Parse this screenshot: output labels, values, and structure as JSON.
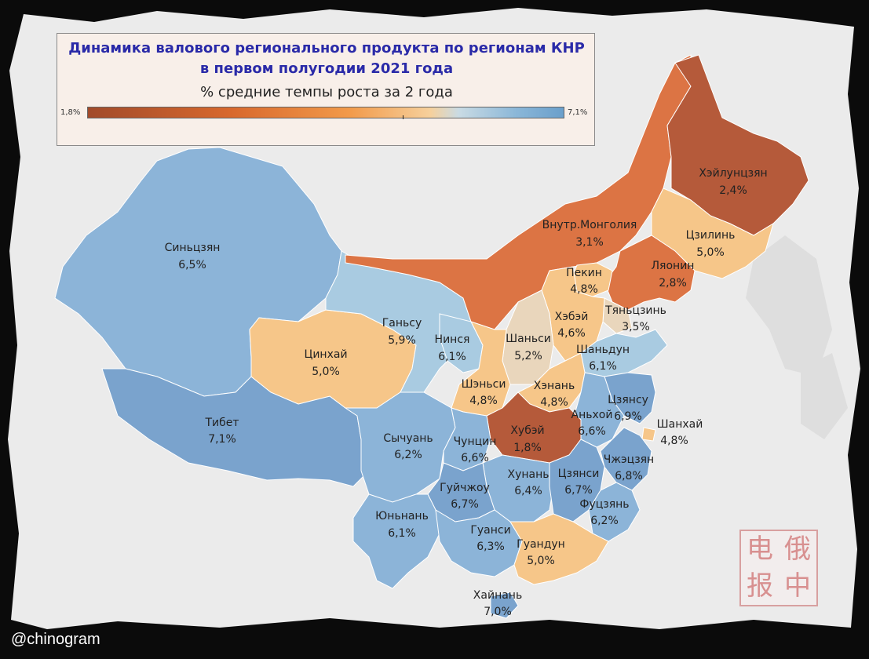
{
  "legend": {
    "title_line1": "Динамика валового регионального продукта по регионам КНР",
    "title_line2": "в первом полугодии 2021 года",
    "subtitle": "% средние темпы роста за 2 года",
    "min_label": "1,8%",
    "max_label": "7,1%"
  },
  "colors": {
    "paper": "#ebebeb",
    "dark_red": "#b55a3a",
    "orange": "#dc7444",
    "light_orange": "#f6c689",
    "beige": "#e9d6bc",
    "light_blue": "#a9cbe1",
    "mid_blue": "#8cb4d8",
    "blue": "#7aa3cd",
    "title_blue": "#2a2aa8"
  },
  "regions": [
    {
      "name": "Синьцзян",
      "value": "6,5%"
    },
    {
      "name": "Тибет",
      "value": "7,1%"
    },
    {
      "name": "Цинхай",
      "value": "5,0%"
    },
    {
      "name": "Ганьсу",
      "value": "5,9%"
    },
    {
      "name": "Нинся",
      "value": "6,1%"
    },
    {
      "name": "Внутр.Монголия",
      "value": "3,1%"
    },
    {
      "name": "Хэйлунцзян",
      "value": "2,4%"
    },
    {
      "name": "Цзилинь",
      "value": "5,0%"
    },
    {
      "name": "Ляонин",
      "value": "2,8%"
    },
    {
      "name": "Пекин",
      "value": "4,8%"
    },
    {
      "name": "Тяньцзинь",
      "value": "3,5%"
    },
    {
      "name": "Хэбэй",
      "value": "4,6%"
    },
    {
      "name": "Шаньси",
      "value": "5,2%"
    },
    {
      "name": "Шаньдун",
      "value": "6,1%"
    },
    {
      "name": "Шэньси",
      "value": "4,8%"
    },
    {
      "name": "Хэнань",
      "value": "4,8%"
    },
    {
      "name": "Цзянсу",
      "value": "6,9%"
    },
    {
      "name": "Аньхой",
      "value": "6,6%"
    },
    {
      "name": "Шанхай",
      "value": "4,8%"
    },
    {
      "name": "Хубэй",
      "value": "1,8%"
    },
    {
      "name": "Чунцин",
      "value": "6,6%"
    },
    {
      "name": "Сычуань",
      "value": "6,2%"
    },
    {
      "name": "Чжэцзян",
      "value": "6,8%"
    },
    {
      "name": "Хунань",
      "value": "6,4%"
    },
    {
      "name": "Цзянси",
      "value": "6,7%"
    },
    {
      "name": "Гуйчжоу",
      "value": "6,7%"
    },
    {
      "name": "Фуцзянь",
      "value": "6,2%"
    },
    {
      "name": "Юньнань",
      "value": "6,1%"
    },
    {
      "name": "Гуанси",
      "value": "6,3%"
    },
    {
      "name": "Гуандун",
      "value": "5,0%"
    },
    {
      "name": "Хайнань",
      "value": "7,0%"
    }
  ],
  "watermark": [
    "电",
    "俄",
    "报",
    "中"
  ],
  "credit": "@chinogram"
}
